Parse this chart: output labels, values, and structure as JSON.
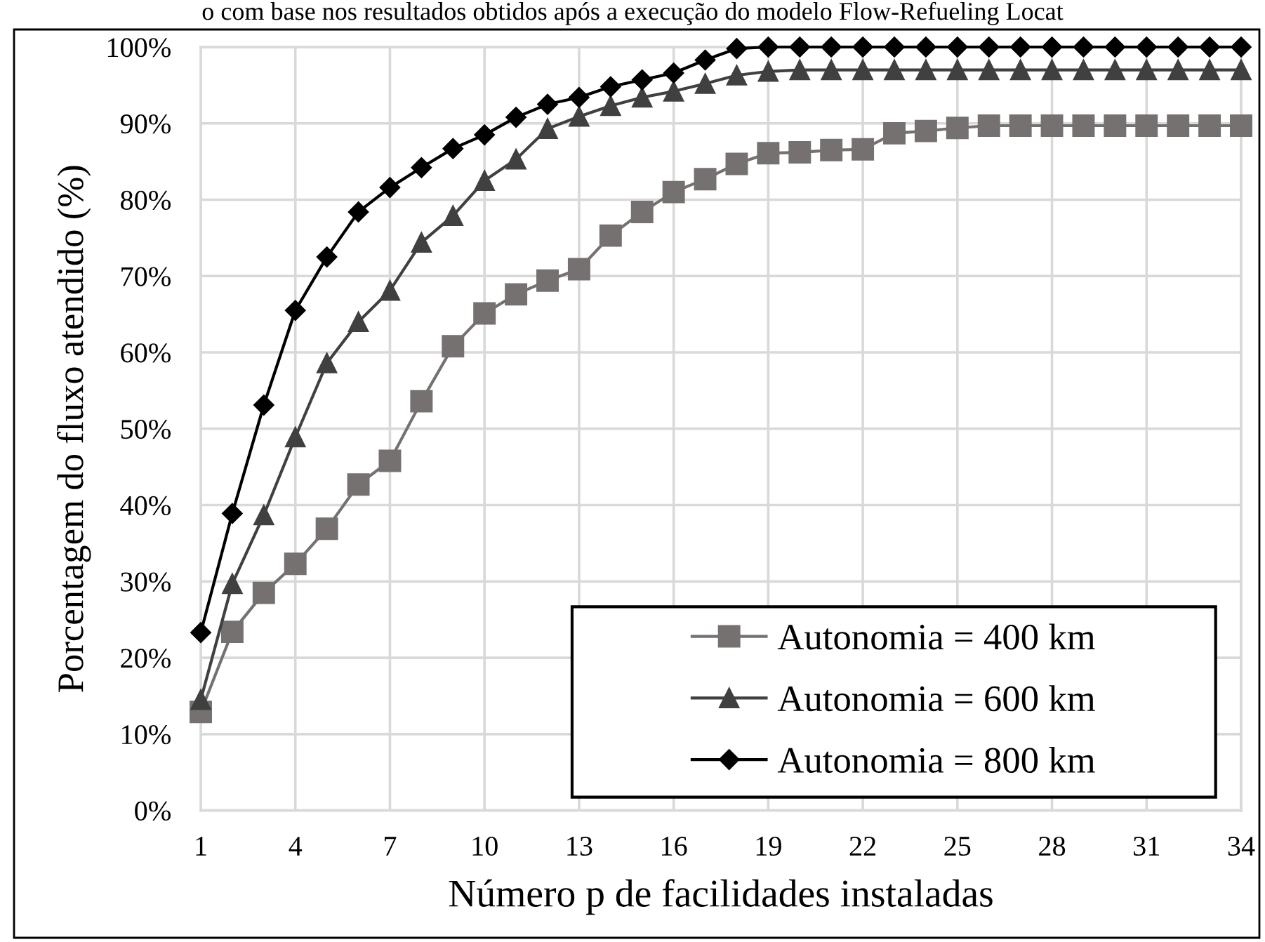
{
  "chart_data": {
    "type": "line",
    "title": "o com base nos resultados obtidos após a execução do modelo Flow-Refueling Locat",
    "xlabel": "Número p de facilidades instaladas",
    "ylabel": "Porcentagem do fluxo atendido (%)",
    "x": [
      1,
      2,
      3,
      4,
      5,
      6,
      7,
      8,
      9,
      10,
      11,
      12,
      13,
      14,
      15,
      16,
      17,
      18,
      19,
      20,
      21,
      22,
      23,
      24,
      25,
      26,
      27,
      28,
      29,
      30,
      31,
      32,
      33,
      34
    ],
    "xlim": [
      1,
      34
    ],
    "xticks": [
      1,
      4,
      7,
      10,
      13,
      16,
      19,
      22,
      25,
      28,
      31,
      34
    ],
    "ylim": [
      0,
      100
    ],
    "yticks": [
      {
        "value": 0,
        "label": "0%"
      },
      {
        "value": 10,
        "label": "10%"
      },
      {
        "value": 20,
        "label": "20%"
      },
      {
        "value": 30,
        "label": "30%"
      },
      {
        "value": 40,
        "label": "40%"
      },
      {
        "value": 50,
        "label": "50%"
      },
      {
        "value": 60,
        "label": "60%"
      },
      {
        "value": 70,
        "label": "70%"
      },
      {
        "value": 80,
        "label": "80%"
      },
      {
        "value": 90,
        "label": "90%"
      },
      {
        "value": 100,
        "label": "100%"
      }
    ],
    "grid": true,
    "legend": "bottom right",
    "line_style": "solid",
    "series": [
      {
        "name": "Autonomia = 400 km",
        "color": "#767171",
        "marker": "square",
        "values": [
          12.9,
          23.4,
          28.5,
          32.3,
          36.9,
          42.7,
          45.8,
          53.6,
          60.8,
          65.1,
          67.6,
          69.4,
          70.9,
          75.3,
          78.4,
          81.0,
          82.7,
          84.7,
          86.1,
          86.2,
          86.5,
          86.6,
          88.7,
          89.0,
          89.4,
          89.7,
          89.7,
          89.7,
          89.7,
          89.7,
          89.7,
          89.7,
          89.7,
          89.7
        ]
      },
      {
        "name": "Autonomia = 600 km",
        "color": "#404040",
        "marker": "triangle",
        "values": [
          14.5,
          29.7,
          38.7,
          48.9,
          58.6,
          64.0,
          68.1,
          74.4,
          77.9,
          82.5,
          85.3,
          89.3,
          90.9,
          92.3,
          93.4,
          94.2,
          95.2,
          96.3,
          96.8,
          97.0,
          97.0,
          97.0,
          97.0,
          97.0,
          97.0,
          97.0,
          97.0,
          97.0,
          97.0,
          97.0,
          97.0,
          97.0,
          97.0,
          97.0
        ]
      },
      {
        "name": "Autonomia = 800 km",
        "color": "#000000",
        "marker": "diamond",
        "values": [
          23.3,
          38.9,
          53.1,
          65.5,
          72.5,
          78.4,
          81.6,
          84.2,
          86.7,
          88.5,
          90.8,
          92.5,
          93.4,
          94.8,
          95.7,
          96.6,
          98.3,
          99.8,
          100,
          100,
          100,
          100,
          100,
          100,
          100,
          100,
          100,
          100,
          100,
          100,
          100,
          100,
          100,
          100
        ]
      }
    ]
  }
}
